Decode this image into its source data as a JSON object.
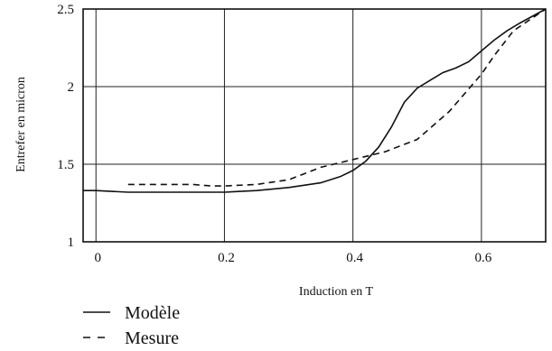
{
  "chart_data": {
    "type": "line",
    "title": "",
    "xlabel": "Induction en T",
    "ylabel": "Entrefer en micron",
    "xlim": [
      -0.02,
      0.7
    ],
    "ylim": [
      1,
      2.5
    ],
    "xticks": [
      0,
      0.2,
      0.4,
      0.6
    ],
    "xtick_labels": [
      "0",
      "0.2",
      "0.4",
      "0.6"
    ],
    "yticks": [
      1,
      1.5,
      2,
      2.5
    ],
    "ytick_labels": [
      "1",
      "1.5",
      "2",
      "2.5"
    ],
    "grid": true,
    "legend": "bottom-left",
    "series": [
      {
        "name": "Modèle",
        "style": "solid",
        "x": [
          -0.02,
          0.0,
          0.05,
          0.1,
          0.15,
          0.2,
          0.25,
          0.3,
          0.35,
          0.38,
          0.4,
          0.42,
          0.44,
          0.46,
          0.48,
          0.5,
          0.52,
          0.54,
          0.56,
          0.58,
          0.6,
          0.62,
          0.64,
          0.66,
          0.7
        ],
        "y": [
          1.33,
          1.33,
          1.32,
          1.32,
          1.32,
          1.32,
          1.33,
          1.35,
          1.38,
          1.42,
          1.46,
          1.52,
          1.61,
          1.74,
          1.9,
          1.99,
          2.04,
          2.09,
          2.12,
          2.16,
          2.23,
          2.3,
          2.36,
          2.41,
          2.5
        ]
      },
      {
        "name": "Mesure",
        "style": "dashed",
        "x": [
          0.05,
          0.1,
          0.15,
          0.18,
          0.2,
          0.25,
          0.3,
          0.35,
          0.4,
          0.45,
          0.5,
          0.55,
          0.6,
          0.62,
          0.65,
          0.7
        ],
        "y": [
          1.37,
          1.37,
          1.37,
          1.36,
          1.36,
          1.37,
          1.4,
          1.48,
          1.53,
          1.58,
          1.66,
          1.84,
          2.08,
          2.2,
          2.36,
          2.5
        ]
      }
    ]
  }
}
